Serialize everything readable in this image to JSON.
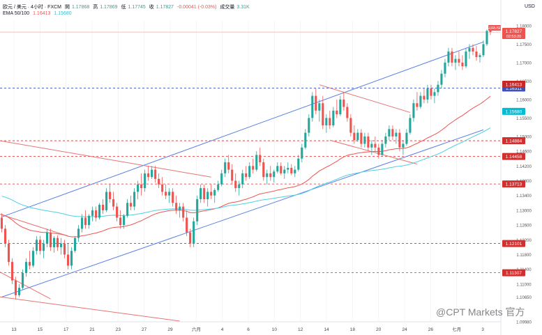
{
  "header": {
    "line1": {
      "symbol": "欧元 / 美元 · 4小时 · FXCM",
      "open_label": "開",
      "open": "1.17868",
      "high_label": "高",
      "high": "1.17869",
      "low_label": "低",
      "low": "1.17745",
      "close_label": "收",
      "close": "1.17827",
      "change": "-0.00041 (-0.03%)",
      "volume_label": "成交量",
      "volume": "3.31K"
    },
    "line2": {
      "label": "EMA 50/100",
      "ema50": "1.16413",
      "ema100": "1.15680"
    }
  },
  "currency": "USD",
  "watermark": "@CPT Markets 官方",
  "colors": {
    "up": "#26a69a",
    "down": "#ef5350",
    "ema50": "#ef5350",
    "ema100": "#4dd0e1",
    "channel": "#5b7fe8",
    "trend": "#e57373"
  },
  "chart_data": {
    "type": "candlestick",
    "symbol": "EURUSD",
    "timeframe": "4H",
    "x_ticks": [
      "13",
      "15",
      "17",
      "21",
      "23",
      "27",
      "29",
      "六月",
      "4",
      "6",
      "10",
      "12",
      "14",
      "18",
      "20",
      "24",
      "26",
      "七月",
      "3"
    ],
    "y_ticks": [
      "1.18000",
      "1.17500",
      "1.17000",
      "1.16500",
      "1.16000",
      "1.15500",
      "1.15000",
      "1.14600",
      "1.14200",
      "1.13800",
      "1.13400",
      "1.13000",
      "1.12600",
      "1.12200",
      "1.11800",
      "1.11400",
      "1.11000",
      "1.10650",
      "1.09980"
    ],
    "ylim": [
      1.0998,
      1.1813
    ],
    "ohlc_keys": [
      "open",
      "high",
      "low",
      "close"
    ],
    "candles": [
      [
        1.128,
        1.1292,
        1.124,
        1.125
      ],
      [
        1.125,
        1.126,
        1.12,
        1.121
      ],
      [
        1.121,
        1.122,
        1.115,
        1.116
      ],
      [
        1.116,
        1.117,
        1.11,
        1.111
      ],
      [
        1.111,
        1.112,
        1.106,
        1.107
      ],
      [
        1.107,
        1.11,
        1.1065,
        1.109
      ],
      [
        1.109,
        1.114,
        1.1085,
        1.113
      ],
      [
        1.113,
        1.117,
        1.112,
        1.116
      ],
      [
        1.116,
        1.119,
        1.114,
        1.115
      ],
      [
        1.115,
        1.12,
        1.1145,
        1.119
      ],
      [
        1.119,
        1.123,
        1.118,
        1.122
      ],
      [
        1.122,
        1.123,
        1.118,
        1.119
      ],
      [
        1.119,
        1.122,
        1.117,
        1.121
      ],
      [
        1.121,
        1.125,
        1.12,
        1.124
      ],
      [
        1.124,
        1.125,
        1.119,
        1.12
      ],
      [
        1.12,
        1.123,
        1.1185,
        1.1225
      ],
      [
        1.1225,
        1.1232,
        1.119,
        1.12
      ],
      [
        1.12,
        1.1225,
        1.118,
        1.121
      ],
      [
        1.121,
        1.122,
        1.117,
        1.118
      ],
      [
        1.118,
        1.121,
        1.114,
        1.115
      ],
      [
        1.115,
        1.12,
        1.114,
        1.119
      ],
      [
        1.119,
        1.123,
        1.1185,
        1.1225
      ],
      [
        1.1225,
        1.126,
        1.1215,
        1.125
      ],
      [
        1.125,
        1.129,
        1.124,
        1.128
      ],
      [
        1.128,
        1.13,
        1.125,
        1.126
      ],
      [
        1.126,
        1.129,
        1.125,
        1.1285
      ],
      [
        1.1285,
        1.131,
        1.127,
        1.13
      ],
      [
        1.13,
        1.131,
        1.127,
        1.128
      ],
      [
        1.128,
        1.132,
        1.1275,
        1.1315
      ],
      [
        1.1315,
        1.133,
        1.129,
        1.13
      ],
      [
        1.13,
        1.136,
        1.1295,
        1.135
      ],
      [
        1.135,
        1.137,
        1.132,
        1.133
      ],
      [
        1.133,
        1.135,
        1.13,
        1.131
      ],
      [
        1.131,
        1.132,
        1.127,
        1.128
      ],
      [
        1.128,
        1.13,
        1.125,
        1.126
      ],
      [
        1.126,
        1.129,
        1.125,
        1.1285
      ],
      [
        1.1285,
        1.133,
        1.128,
        1.132
      ],
      [
        1.132,
        1.134,
        1.13,
        1.131
      ],
      [
        1.131,
        1.136,
        1.13,
        1.135
      ],
      [
        1.135,
        1.138,
        1.133,
        1.137
      ],
      [
        1.137,
        1.14,
        1.134,
        1.136
      ],
      [
        1.136,
        1.141,
        1.135,
        1.14
      ],
      [
        1.14,
        1.142,
        1.138,
        1.139
      ],
      [
        1.139,
        1.142,
        1.1385,
        1.141
      ],
      [
        1.141,
        1.142,
        1.1375,
        1.1385
      ],
      [
        1.1385,
        1.14,
        1.136,
        1.137
      ],
      [
        1.137,
        1.139,
        1.134,
        1.135
      ],
      [
        1.135,
        1.137,
        1.133,
        1.134
      ],
      [
        1.134,
        1.136,
        1.132,
        1.135
      ],
      [
        1.135,
        1.136,
        1.131,
        1.132
      ],
      [
        1.132,
        1.134,
        1.129,
        1.13
      ],
      [
        1.13,
        1.132,
        1.128,
        1.131
      ],
      [
        1.131,
        1.132,
        1.127,
        1.128
      ],
      [
        1.128,
        1.13,
        1.123,
        1.124
      ],
      [
        1.124,
        1.125,
        1.12,
        1.121
      ],
      [
        1.121,
        1.128,
        1.12,
        1.127
      ],
      [
        1.127,
        1.134,
        1.126,
        1.133
      ],
      [
        1.133,
        1.137,
        1.132,
        1.136
      ],
      [
        1.136,
        1.137,
        1.132,
        1.133
      ],
      [
        1.133,
        1.136,
        1.131,
        1.135
      ],
      [
        1.135,
        1.137,
        1.133,
        1.134
      ],
      [
        1.134,
        1.136,
        1.132,
        1.1355
      ],
      [
        1.1355,
        1.138,
        1.135,
        1.137
      ],
      [
        1.137,
        1.141,
        1.1365,
        1.14
      ],
      [
        1.14,
        1.144,
        1.139,
        1.143
      ],
      [
        1.143,
        1.145,
        1.14,
        1.141
      ],
      [
        1.141,
        1.1425,
        1.137,
        1.138
      ],
      [
        1.138,
        1.14,
        1.135,
        1.136
      ],
      [
        1.136,
        1.138,
        1.134,
        1.137
      ],
      [
        1.137,
        1.141,
        1.136,
        1.14
      ],
      [
        1.14,
        1.142,
        1.138,
        1.139
      ],
      [
        1.139,
        1.143,
        1.1385,
        1.142
      ],
      [
        1.142,
        1.144,
        1.14,
        1.141
      ],
      [
        1.141,
        1.146,
        1.1405,
        1.145
      ],
      [
        1.145,
        1.147,
        1.142,
        1.143
      ],
      [
        1.143,
        1.144,
        1.138,
        1.139
      ],
      [
        1.139,
        1.141,
        1.137,
        1.14
      ],
      [
        1.14,
        1.142,
        1.138,
        1.139
      ],
      [
        1.139,
        1.141,
        1.1375,
        1.1405
      ],
      [
        1.1405,
        1.143,
        1.14,
        1.142
      ],
      [
        1.142,
        1.143,
        1.1395,
        1.14
      ],
      [
        1.14,
        1.142,
        1.1385,
        1.141
      ],
      [
        1.141,
        1.143,
        1.14,
        1.1415
      ],
      [
        1.1415,
        1.1425,
        1.1395,
        1.14
      ],
      [
        1.14,
        1.142,
        1.139,
        1.141
      ],
      [
        1.141,
        1.145,
        1.1405,
        1.144
      ],
      [
        1.144,
        1.148,
        1.143,
        1.147
      ],
      [
        1.147,
        1.152,
        1.1465,
        1.151
      ],
      [
        1.151,
        1.156,
        1.15,
        1.155
      ],
      [
        1.155,
        1.162,
        1.154,
        1.161
      ],
      [
        1.161,
        1.163,
        1.156,
        1.157
      ],
      [
        1.157,
        1.16,
        1.154,
        1.159
      ],
      [
        1.159,
        1.161,
        1.152,
        1.153
      ],
      [
        1.153,
        1.156,
        1.151,
        1.155
      ],
      [
        1.155,
        1.157,
        1.152,
        1.153
      ],
      [
        1.153,
        1.158,
        1.1525,
        1.157
      ],
      [
        1.157,
        1.16,
        1.155,
        1.156
      ],
      [
        1.156,
        1.161,
        1.1555,
        1.16
      ],
      [
        1.16,
        1.162,
        1.157,
        1.158
      ],
      [
        1.158,
        1.159,
        1.154,
        1.155
      ],
      [
        1.155,
        1.156,
        1.15,
        1.151
      ],
      [
        1.151,
        1.153,
        1.148,
        1.149
      ],
      [
        1.149,
        1.152,
        1.1485,
        1.151
      ],
      [
        1.151,
        1.152,
        1.147,
        1.148
      ],
      [
        1.148,
        1.151,
        1.147,
        1.15
      ],
      [
        1.15,
        1.151,
        1.146,
        1.147
      ],
      [
        1.147,
        1.149,
        1.145,
        1.148
      ],
      [
        1.148,
        1.15,
        1.146,
        1.147
      ],
      [
        1.147,
        1.148,
        1.144,
        1.145
      ],
      [
        1.145,
        1.149,
        1.1445,
        1.148
      ],
      [
        1.148,
        1.151,
        1.147,
        1.15
      ],
      [
        1.15,
        1.153,
        1.149,
        1.152
      ],
      [
        1.152,
        1.153,
        1.149,
        1.15
      ],
      [
        1.15,
        1.152,
        1.148,
        1.151
      ],
      [
        1.151,
        1.152,
        1.146,
        1.147
      ],
      [
        1.147,
        1.149,
        1.145,
        1.148
      ],
      [
        1.148,
        1.152,
        1.1475,
        1.151
      ],
      [
        1.151,
        1.156,
        1.1505,
        1.155
      ],
      [
        1.155,
        1.16,
        1.154,
        1.159
      ],
      [
        1.159,
        1.162,
        1.157,
        1.158
      ],
      [
        1.158,
        1.162,
        1.1575,
        1.161
      ],
      [
        1.161,
        1.163,
        1.159,
        1.16
      ],
      [
        1.16,
        1.164,
        1.159,
        1.163
      ],
      [
        1.163,
        1.164,
        1.16,
        1.161
      ],
      [
        1.161,
        1.163,
        1.159,
        1.162
      ],
      [
        1.162,
        1.165,
        1.161,
        1.164
      ],
      [
        1.164,
        1.168,
        1.163,
        1.167
      ],
      [
        1.167,
        1.171,
        1.166,
        1.17
      ],
      [
        1.17,
        1.174,
        1.169,
        1.173
      ],
      [
        1.173,
        1.174,
        1.169,
        1.17
      ],
      [
        1.17,
        1.172,
        1.168,
        1.171
      ],
      [
        1.171,
        1.173,
        1.169,
        1.17
      ],
      [
        1.17,
        1.172,
        1.168,
        1.169
      ],
      [
        1.169,
        1.174,
        1.1685,
        1.173
      ],
      [
        1.173,
        1.175,
        1.171,
        1.174
      ],
      [
        1.174,
        1.175,
        1.172,
        1.173
      ],
      [
        1.173,
        1.1745,
        1.1705,
        1.1715
      ],
      [
        1.1715,
        1.1725,
        1.17,
        1.172
      ],
      [
        1.172,
        1.176,
        1.1715,
        1.175
      ],
      [
        1.175,
        1.179,
        1.1745,
        1.1786
      ],
      [
        1.17868,
        1.17869,
        1.17745,
        1.17827
      ]
    ],
    "ema50": {
      "name": "EMA 50",
      "last": 1.16413
    },
    "ema100": {
      "name": "EMA 100",
      "last": 1.1568
    },
    "horizontal_levels": [
      {
        "price": 1.14884,
        "label": "1.14884",
        "color": "#d32f2f",
        "style": "dashed"
      },
      {
        "price": 1.14458,
        "label": "1.14458",
        "color": "#d32f2f",
        "style": "dashed"
      },
      {
        "price": 1.13713,
        "label": "1.13713",
        "color": "#d32f2f",
        "style": "dashed"
      },
      {
        "price": 1.12101,
        "label": "1.12101",
        "color": "#d32f2f",
        "style": "dashed"
      },
      {
        "price": 1.11307,
        "label": "1.11307",
        "color": "#d32f2f",
        "style": "dashed"
      },
      {
        "price": 1.16311,
        "label": "1.16311",
        "color": "#3f51b5",
        "style": "dashed"
      }
    ],
    "price_tags": [
      {
        "price": 1.17827,
        "label": "1.17827",
        "sub": "02:53:20",
        "name": "EURUSD",
        "color": "#ef5350"
      },
      {
        "price": 1.16413,
        "label": "1.16413",
        "color": "#c62828"
      },
      {
        "price": 1.1568,
        "label": "1.15680",
        "color": "#00bcd4"
      }
    ],
    "channel_lines": [
      {
        "from": [
          0,
          1.1282
        ],
        "to": [
          138,
          1.1756
        ],
        "color": "#5b7fe8"
      },
      {
        "from": [
          0,
          1.1065
        ],
        "to": [
          138,
          1.1518
        ],
        "color": "#5b7fe8"
      }
    ],
    "trend_lines": [
      {
        "from": [
          -4,
          1.1494
        ],
        "to": [
          60,
          1.139
        ],
        "color": "#e57373"
      },
      {
        "from": [
          -4,
          1.13
        ],
        "to": [
          19,
          1.123
        ],
        "color": "#e57373"
      },
      {
        "from": [
          -4,
          1.115
        ],
        "to": [
          14,
          1.106
        ],
        "color": "#e57373"
      },
      {
        "from": [
          -4,
          1.107
        ],
        "to": [
          51,
          1.1
        ],
        "color": "#e57373"
      },
      {
        "from": [
          91,
          1.164
        ],
        "to": [
          117,
          1.1565
        ],
        "color": "#e57373"
      },
      {
        "from": [
          94,
          1.149
        ],
        "to": [
          119,
          1.1425
        ],
        "color": "#e57373"
      }
    ]
  }
}
